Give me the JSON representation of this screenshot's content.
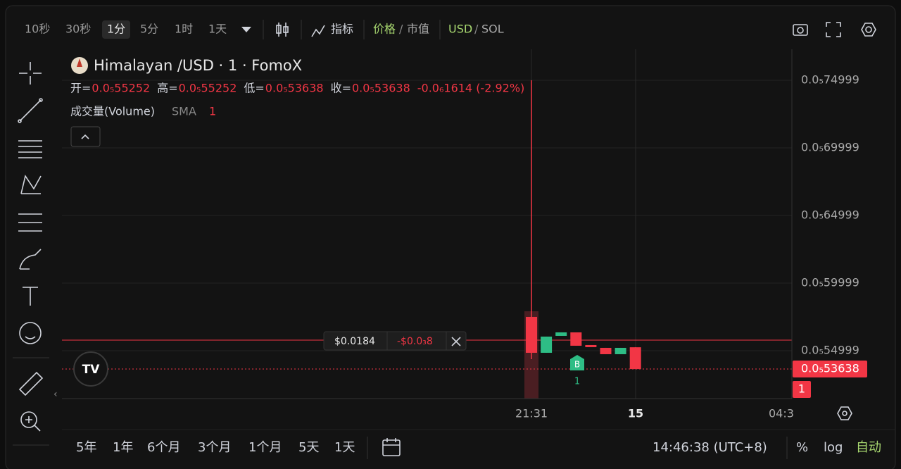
{
  "toolbar": {
    "intervals": [
      "10秒",
      "30秒",
      "1分",
      "5分",
      "1时",
      "1天"
    ],
    "indicators": "指标",
    "price": "价格",
    "sep1": "/",
    "mcap": "市值",
    "usd": "USD",
    "sep2": "/",
    "sol": "SOL"
  },
  "legend": {
    "symbol": "Himalayan /USD · 1 · FomoX",
    "ohlc": [
      {
        "label": "开=",
        "value": "0.0₅55252"
      },
      {
        "label": "高=",
        "value": "0.0₅55252"
      },
      {
        "label": "低=",
        "value": "0.0₅53638"
      },
      {
        "label": "收=",
        "value": "0.0₅53638"
      }
    ],
    "change": "-0.0₆1614 (-2.92%)",
    "volume_label": "成交量(Volume)",
    "sma": "SMA",
    "sma_value": "1"
  },
  "chart": {
    "type": "candlestick",
    "ylim": [
      5.1457e-06,
      7.7291e-06
    ],
    "yticks": [
      {
        "value": 7.4999e-06,
        "label": "0.0₅74999"
      },
      {
        "value": 6.9999e-06,
        "label": "0.0₅69999"
      },
      {
        "value": 6.4999e-06,
        "label": "0.0₅64999"
      },
      {
        "value": 5.9999e-06,
        "label": "0.0₅59999"
      },
      {
        "value": 5.4999e-06,
        "label": "0.0₅54999"
      }
    ],
    "grid": true,
    "up_color": "#2ebd85",
    "down_color": "#f23645",
    "candles": [
      {
        "open": 5.75e-06,
        "high": 7.5e-06,
        "low": 5.4375e-06,
        "close": 5.4844e-06
      },
      {
        "open": 5.4844e-06,
        "high": 5.6042e-06,
        "low": 5.4844e-06,
        "close": 5.6042e-06
      },
      {
        "open": 5.6094e-06,
        "high": 5.6354e-06,
        "low": 5.6094e-06,
        "close": 5.6354e-06
      },
      {
        "open": 5.6354e-06,
        "high": 5.6354e-06,
        "low": 5.5365e-06,
        "close": 5.5365e-06
      },
      {
        "open": 5.5417e-06,
        "high": 5.5417e-06,
        "low": 5.5261e-06,
        "close": 5.5261e-06
      },
      {
        "open": 5.5209e-06,
        "high": 5.5209e-06,
        "low": 5.474e-06,
        "close": 5.474e-06
      },
      {
        "open": 5.474e-06,
        "high": 5.5209e-06,
        "low": 5.474e-06,
        "close": 5.5209e-06
      },
      {
        "open": 5.5252e-06,
        "high": 5.5252e-06,
        "low": 5.3638e-06,
        "close": 5.3638e-06
      }
    ],
    "x_labels": [
      "21:31",
      "15",
      "04:3"
    ],
    "last_price_label": "0.0₅53638",
    "last_volume_label": "1",
    "order_tag": {
      "price": "$0.0184",
      "pnl": "-$0.0₃8"
    },
    "marker": {
      "label": "B",
      "count": "1"
    }
  },
  "bottom": {
    "ranges": [
      "5年",
      "1年",
      "6个月",
      "3个月",
      "1个月",
      "5天",
      "1天"
    ],
    "time": "14:46:38 (UTC+8)",
    "percent": "%",
    "log": "log",
    "auto": "自动"
  }
}
